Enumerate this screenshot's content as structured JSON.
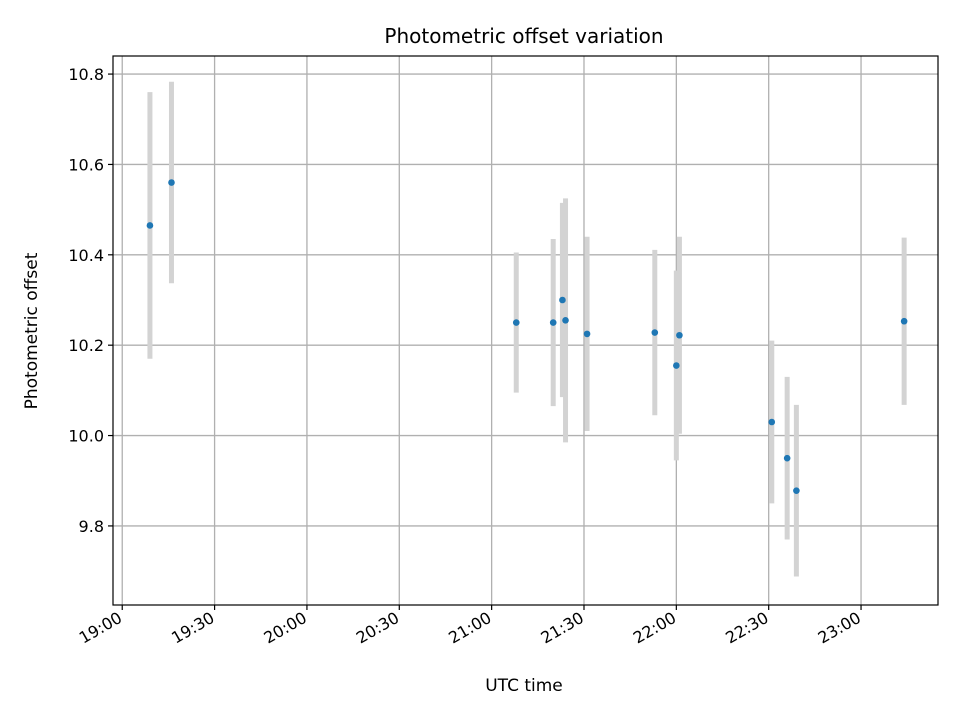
{
  "chart_data": {
    "type": "scatter",
    "title": "Photometric offset variation",
    "xlabel": "UTC time",
    "ylabel": "Photometric offset",
    "x_tick_labels": [
      "19:00",
      "19:30",
      "20:00",
      "20:30",
      "21:00",
      "21:30",
      "22:00",
      "22:30",
      "23:00"
    ],
    "y_tick_labels": [
      "9.8",
      "10.0",
      "10.2",
      "10.4",
      "10.6",
      "10.8"
    ],
    "y_ticks": [
      9.8,
      10.0,
      10.2,
      10.4,
      10.6,
      10.8
    ],
    "xlim": [
      "18:57",
      "23:25"
    ],
    "ylim": [
      9.625,
      10.84
    ],
    "grid": true,
    "marker_color": "#1f77b4",
    "errorbar_color": "#d3d3d3",
    "points": [
      {
        "x": "19:09",
        "y": 10.465,
        "yerr": 0.295
      },
      {
        "x": "19:16",
        "y": 10.56,
        "yerr": 0.223
      },
      {
        "x": "21:08",
        "y": 10.25,
        "yerr": 0.155
      },
      {
        "x": "21:20",
        "y": 10.25,
        "yerr": 0.185
      },
      {
        "x": "21:23",
        "y": 10.3,
        "yerr": 0.215
      },
      {
        "x": "21:24",
        "y": 10.255,
        "yerr": 0.27
      },
      {
        "x": "21:31",
        "y": 10.225,
        "yerr": 0.215
      },
      {
        "x": "21:53",
        "y": 10.228,
        "yerr": 0.183
      },
      {
        "x": "22:00",
        "y": 10.155,
        "yerr": 0.21
      },
      {
        "x": "22:01",
        "y": 10.222,
        "yerr": 0.218
      },
      {
        "x": "22:31",
        "y": 10.03,
        "yerr": 0.18
      },
      {
        "x": "22:36",
        "y": 9.95,
        "yerr": 0.18
      },
      {
        "x": "22:39",
        "y": 9.878,
        "yerr": 0.19
      },
      {
        "x": "23:14",
        "y": 10.253,
        "yerr": 0.185
      }
    ]
  }
}
